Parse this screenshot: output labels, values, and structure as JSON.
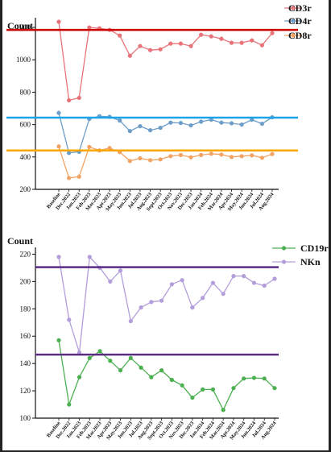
{
  "chart_data": [
    {
      "type": "line",
      "ylabel": "Count",
      "ylim": [
        200,
        1260
      ],
      "yticks": [
        200,
        400,
        600,
        800,
        1000,
        1200
      ],
      "categories": [
        "Baseline",
        "Dec.2022",
        "Jan.2023",
        "Feb.2023",
        "Mar.2023",
        "Apr.2023",
        "May.2023",
        "Jun.2023",
        "Jul.2023",
        "Aug.2023",
        "Sept.2023",
        "Oct.2023",
        "Nov.2023",
        "Dec.2023",
        "Jan.2024",
        "Feb.2024",
        "Mar.2024",
        "Apr.2024",
        "May.2024",
        "Jun.2024",
        "Jul.2024",
        "Aug.2024"
      ],
      "series": [
        {
          "name": "CD3r",
          "color": "#e8737a",
          "values": [
            1235,
            750,
            765,
            1200,
            1195,
            1185,
            1150,
            1025,
            1085,
            1060,
            1065,
            1100,
            1100,
            1085,
            1155,
            1145,
            1130,
            1105,
            1105,
            1120,
            1090,
            1165
          ]
        },
        {
          "name": "CD4r",
          "color": "#6d9ec8",
          "values": [
            672,
            425,
            432,
            635,
            652,
            648,
            625,
            560,
            590,
            565,
            580,
            612,
            610,
            595,
            618,
            630,
            612,
            608,
            600,
            630,
            605,
            645
          ]
        },
        {
          "name": "CD8r",
          "color": "#f2a262",
          "values": [
            465,
            270,
            278,
            462,
            440,
            455,
            430,
            375,
            392,
            380,
            385,
            405,
            412,
            398,
            412,
            420,
            415,
            400,
            405,
            410,
            395,
            418
          ]
        }
      ],
      "reference_lines": [
        {
          "value": 1185,
          "color": "#cc0000"
        },
        {
          "value": 643,
          "color": "#1aa3e8"
        },
        {
          "value": 440,
          "color": "#ffa500"
        }
      ],
      "legend": "top-right"
    },
    {
      "type": "line",
      "ylabel": "Count",
      "ylim": [
        100,
        225
      ],
      "yticks": [
        100,
        120,
        140,
        160,
        180,
        200,
        220
      ],
      "categories": [
        "Baseline",
        "Dec.2022",
        "Jan.2023",
        "Feb.2023",
        "Mar.2023",
        "Apr.2023",
        "May.2023",
        "Jun.2023",
        "Jul.2023",
        "Aug.2023",
        "Sept.2023",
        "Oct.2023",
        "Nov.2023",
        "Dec.2023",
        "Jan.2024",
        "Feb.2024",
        "Mar.2024",
        "Apr.2024",
        "May.2024",
        "Jun.2024",
        "Jul.2024",
        "Aug.2024"
      ],
      "series": [
        {
          "name": "CD19r",
          "color": "#4caf50",
          "values": [
            157,
            110,
            130,
            144,
            149,
            142,
            135,
            144,
            137,
            130,
            135,
            128,
            124,
            115,
            121,
            121,
            106,
            122,
            129,
            129.5,
            129,
            122
          ]
        },
        {
          "name": "NKn",
          "color": "#b39ddb",
          "values": [
            218,
            172,
            148,
            218,
            210,
            200,
            208,
            171,
            181,
            185,
            186,
            198,
            201,
            181,
            188,
            199,
            191,
            204,
            204,
            199,
            197,
            202
          ]
        }
      ],
      "reference_lines": [
        {
          "value": 210.5,
          "color": "#5b2c83"
        },
        {
          "value": 146.5,
          "color": "#5b2c83"
        }
      ],
      "legend": "top-right"
    }
  ]
}
